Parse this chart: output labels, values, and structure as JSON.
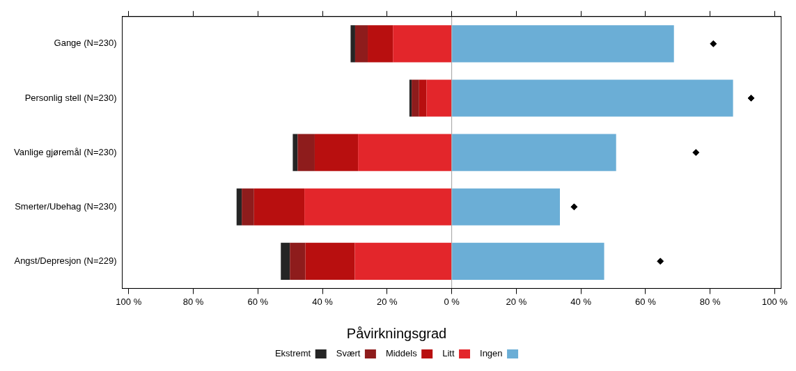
{
  "chart_data": {
    "type": "bar",
    "orientation": "horizontal",
    "stacked": true,
    "categories": [
      "Gange (N=230)",
      "Personlig stell (N=230)",
      "Vanlige gjøremål (N=230)",
      "Smerter/Ubehag (N=230)",
      "Angst/Depresjon (N=229)"
    ],
    "series": [
      {
        "name": "Litt",
        "color": "#e3262b",
        "values": [
          -18.2,
          -7.8,
          -29.0,
          -45.6,
          -30.0
        ]
      },
      {
        "name": "Middels",
        "color": "#b80f0f",
        "values": [
          -7.8,
          -2.3,
          -13.4,
          -15.6,
          -15.3
        ]
      },
      {
        "name": "Svært",
        "color": "#8e1c1c",
        "values": [
          -3.9,
          -2.3,
          -5.3,
          -3.8,
          -4.8
        ]
      },
      {
        "name": "Ekstremt",
        "color": "#252525",
        "values": [
          -1.4,
          -0.7,
          -1.5,
          -1.6,
          -2.8
        ]
      },
      {
        "name": "Ingen",
        "color": "#6baed6",
        "values": [
          68.8,
          87.1,
          50.9,
          33.5,
          47.2
        ]
      },
      {
        "type": "scatter",
        "color": "#000000",
        "marker": "diamond",
        "values": [
          81.0,
          92.7,
          75.6,
          37.9,
          64.6
        ]
      }
    ],
    "xlim": [
      -102,
      102
    ],
    "xticks": [
      {
        "value": -100,
        "label": "100 %"
      },
      {
        "value": -80,
        "label": "80 %"
      },
      {
        "value": -60,
        "label": "60 %"
      },
      {
        "value": -40,
        "label": "40 %"
      },
      {
        "value": -20,
        "label": "20 %"
      },
      {
        "value": 0,
        "label": "0 %"
      },
      {
        "value": 20,
        "label": "20 %"
      },
      {
        "value": 40,
        "label": "40 %"
      },
      {
        "value": 60,
        "label": "60 %"
      },
      {
        "value": 80,
        "label": "80 %"
      },
      {
        "value": 100,
        "label": "100 %"
      }
    ],
    "ref_lines": [
      {
        "axis": "x",
        "value": 0,
        "color": "#a0a0a0"
      }
    ],
    "grid": false,
    "legend": "bottom",
    "legend_title": "Påvirkningsgrad"
  }
}
